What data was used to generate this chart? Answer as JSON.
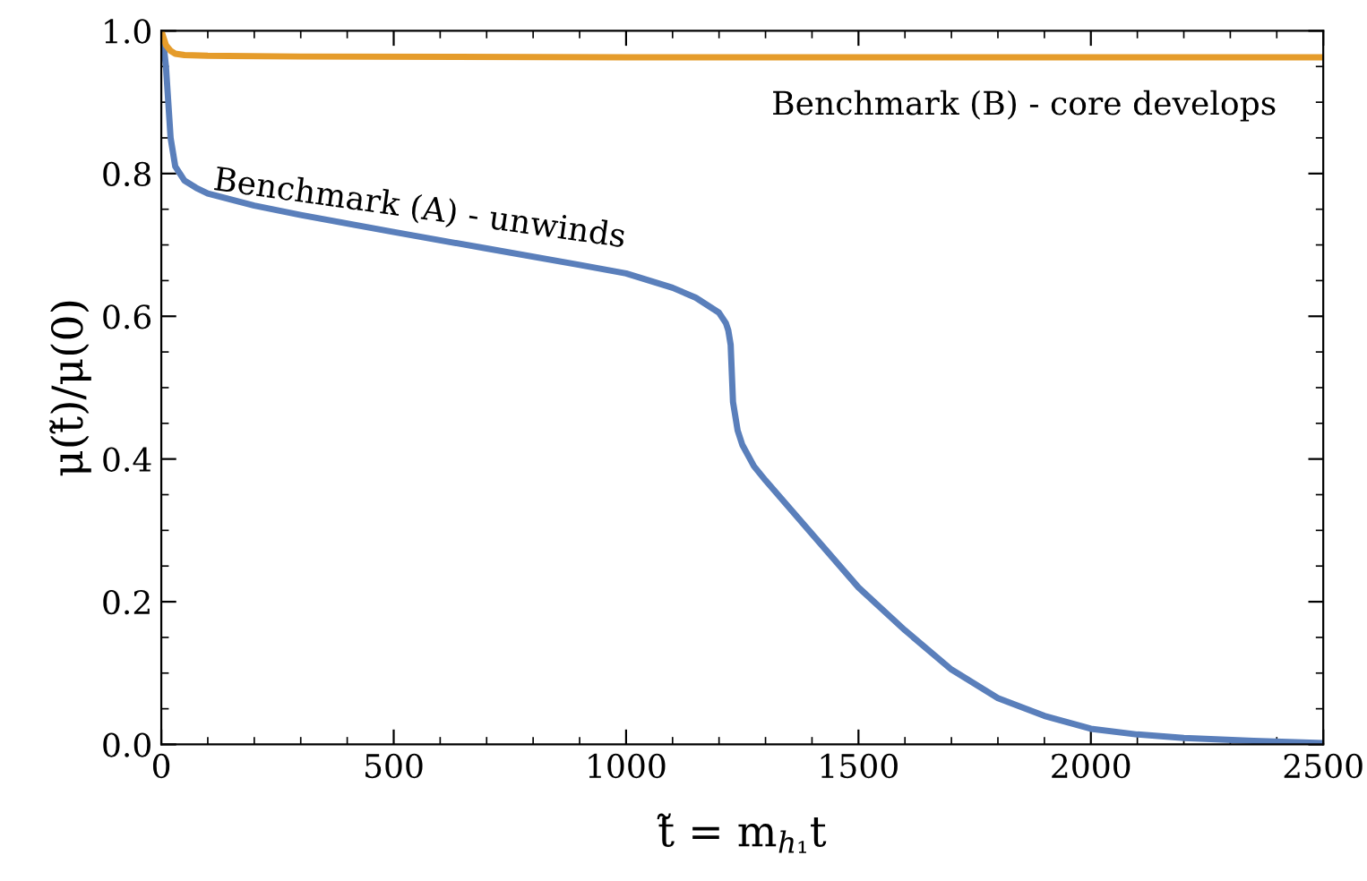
{
  "chart_data": {
    "type": "line",
    "xlabel": "t̃ = m$_{h₁}$t",
    "ylabel": "μ(t̃)/μ(0)",
    "xlim": [
      0,
      2500
    ],
    "ylim": [
      0,
      1.0
    ],
    "xticks": [
      0,
      500,
      1000,
      1500,
      2000,
      2500
    ],
    "yticks": [
      {
        "value": 0,
        "label": "0.0"
      },
      {
        "value": 0.2,
        "label": "0.2"
      },
      {
        "value": 0.4,
        "label": "0.4"
      },
      {
        "value": 0.6,
        "label": "0.6"
      },
      {
        "value": 0.8,
        "label": "0.8"
      },
      {
        "value": 1.0,
        "label": "1.0"
      }
    ],
    "grid": false,
    "legend": false,
    "line_style": "solid",
    "marker": "none",
    "series": [
      {
        "color": "#5a7fbb",
        "x": [
          0,
          5,
          10,
          15,
          20,
          30,
          50,
          75,
          100,
          200,
          300,
          500,
          700,
          900,
          1000,
          1100,
          1150,
          1200,
          1215,
          1220,
          1225,
          1230,
          1240,
          1250,
          1275,
          1300,
          1400,
          1500,
          1600,
          1700,
          1800,
          1900,
          2000,
          2100,
          2200,
          2350,
          2500
        ],
        "values": [
          1.0,
          0.98,
          0.95,
          0.9,
          0.85,
          0.81,
          0.79,
          0.78,
          0.772,
          0.755,
          0.742,
          0.718,
          0.695,
          0.672,
          0.66,
          0.64,
          0.626,
          0.605,
          0.59,
          0.58,
          0.56,
          0.48,
          0.44,
          0.42,
          0.39,
          0.37,
          0.295,
          0.22,
          0.16,
          0.105,
          0.065,
          0.04,
          0.022,
          0.014,
          0.009,
          0.005,
          0.002
        ]
      },
      {
        "color": "#e59c2b",
        "x": [
          0,
          10,
          20,
          30,
          50,
          100,
          300,
          1000,
          2500
        ],
        "values": [
          1.0,
          0.98,
          0.972,
          0.968,
          0.966,
          0.965,
          0.964,
          0.963,
          0.963
        ]
      }
    ],
    "annotations": [
      "Benchmark (A) - unwinds",
      "Benchmark (B) - core develops"
    ]
  }
}
